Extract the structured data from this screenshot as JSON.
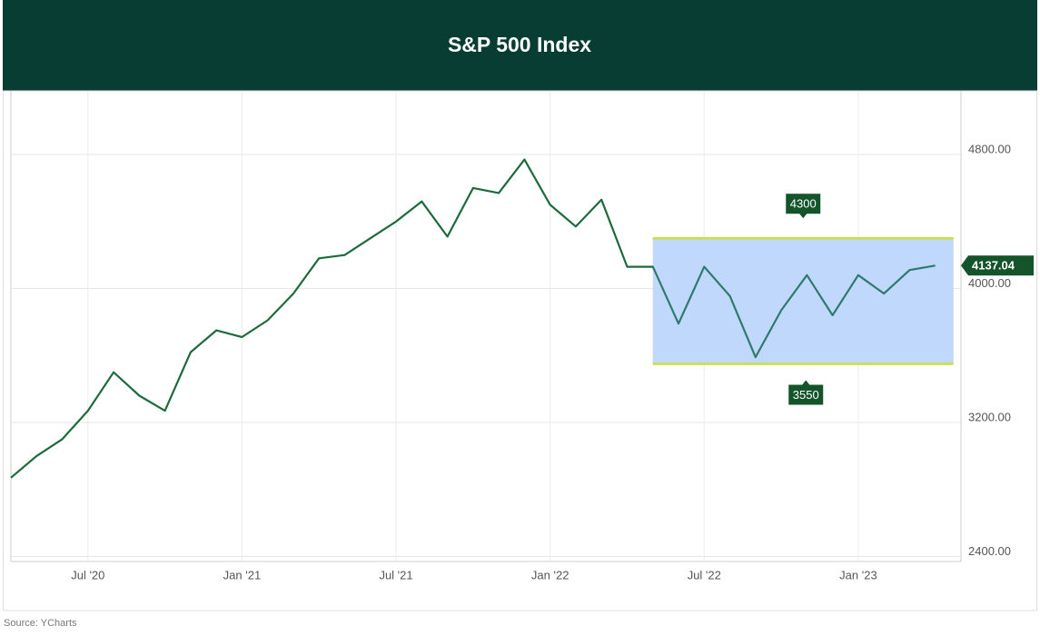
{
  "chart_data": {
    "type": "line",
    "title": "S&P 500 Index",
    "source": "Source: YCharts",
    "x": [
      "2020-04",
      "2020-05",
      "2020-06",
      "2020-07",
      "2020-08",
      "2020-09",
      "2020-10",
      "2020-11",
      "2020-12",
      "2021-01",
      "2021-02",
      "2021-03",
      "2021-04",
      "2021-05",
      "2021-06",
      "2021-07",
      "2021-08",
      "2021-09",
      "2021-10",
      "2021-11",
      "2021-12",
      "2022-01",
      "2022-02",
      "2022-03",
      "2022-04",
      "2022-05",
      "2022-06",
      "2022-07",
      "2022-08",
      "2022-09",
      "2022-10",
      "2022-11",
      "2022-12",
      "2023-01",
      "2023-02",
      "2023-03",
      "2023-04"
    ],
    "series": [
      {
        "name": "S&P 500 Index",
        "color": "#1d6b3c",
        "band_color": "#2f7a6d",
        "values": [
          2870,
          3000,
          3100,
          3270,
          3500,
          3360,
          3270,
          3620,
          3750,
          3710,
          3810,
          3970,
          4180,
          4200,
          4300,
          4400,
          4520,
          4310,
          4600,
          4570,
          4770,
          4500,
          4370,
          4530,
          4130,
          4130,
          3790,
          4130,
          3955,
          3590,
          3870,
          4080,
          3840,
          4080,
          3970,
          4110,
          4137.04
        ]
      }
    ],
    "band": {
      "x_start": "2022-05",
      "x_end": "2023-04",
      "low": 3550,
      "high": 4300,
      "fill": "#bcd6fb",
      "line_color": "#c8e03c"
    },
    "xlim": [
      "2020-04",
      "2023-05"
    ],
    "xticks": [
      {
        "value": "2020-07",
        "label": "Jul '20"
      },
      {
        "value": "2021-01",
        "label": "Jan '21"
      },
      {
        "value": "2021-07",
        "label": "Jul '21"
      },
      {
        "value": "2022-01",
        "label": "Jan '22"
      },
      {
        "value": "2022-07",
        "label": "Jul '22"
      },
      {
        "value": "2023-01",
        "label": "Jan '23"
      }
    ],
    "ylim": [
      2370,
      5180
    ],
    "yticks": [
      {
        "value": 2400,
        "label": "2400.00"
      },
      {
        "value": 3200,
        "label": "3200.00"
      },
      {
        "value": 4000,
        "label": "4000.00"
      },
      {
        "value": 4800,
        "label": "4800.00"
      }
    ],
    "grid": true
  }
}
